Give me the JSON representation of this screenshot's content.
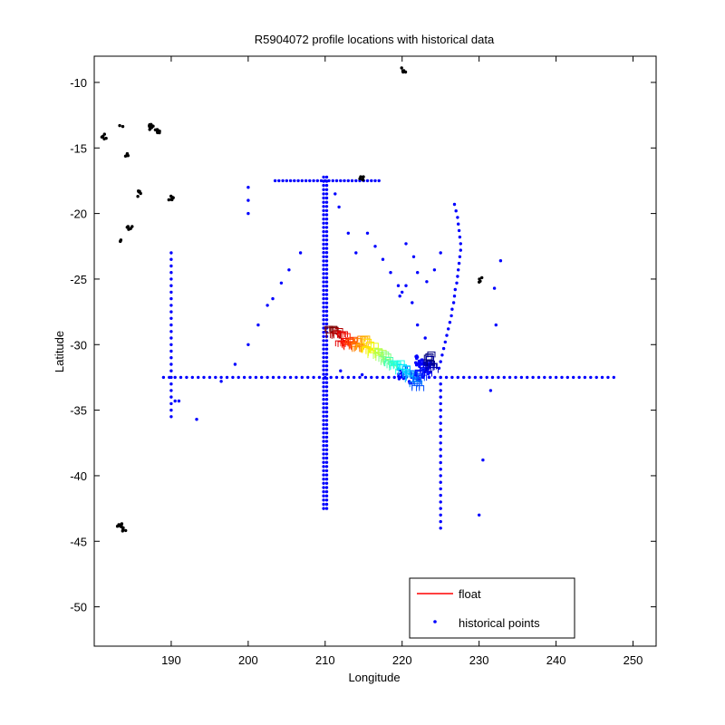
{
  "chart_data": {
    "type": "scatter",
    "title": "R5904072 profile locations with historical data",
    "xlabel": "Longitude",
    "ylabel": "Latitude",
    "xlim": [
      180,
      253
    ],
    "ylim": [
      -53,
      -8
    ],
    "xticks": [
      190,
      200,
      210,
      220,
      230,
      240,
      250
    ],
    "yticks": [
      -10,
      -15,
      -20,
      -25,
      -30,
      -35,
      -40,
      -45,
      -50
    ],
    "xtick_labels": [
      "190",
      "200",
      "210",
      "220",
      "230",
      "240",
      "250"
    ],
    "ytick_labels": [
      "-10",
      "-15",
      "-20",
      "-25",
      "-30",
      "-35",
      "-40",
      "-45",
      "-50"
    ],
    "grid": false,
    "legend_position": "bottom-right",
    "legend": [
      {
        "label": "float",
        "marker": "line",
        "color": "#ff0000"
      },
      {
        "label": "historical points",
        "marker": "dot",
        "color": "#0000ff"
      }
    ],
    "colors": {
      "historical": "#0000ff",
      "other_points": "#000000",
      "float": "#ff0000"
    },
    "historical_lines": [
      {
        "orientation": "horizontal",
        "y": -32.5,
        "x_from": 189,
        "x_to": 247.5,
        "step": 0.75
      },
      {
        "orientation": "vertical",
        "x": 190,
        "y_from": -35.5,
        "y_to": -23,
        "step": 0.5
      },
      {
        "orientation": "vertical",
        "x": 209.8,
        "y_from": -42.5,
        "y_to": -17,
        "step": 0.32
      },
      {
        "orientation": "vertical",
        "x": 210.2,
        "y_from": -42.5,
        "y_to": -17,
        "step": 0.32
      },
      {
        "orientation": "horizontal",
        "y": -17.5,
        "x_from": 203.5,
        "x_to": 217,
        "step": 0.5
      },
      {
        "orientation": "vertical",
        "x": 225,
        "y_from": -44,
        "y_to": -32.5,
        "step": 0.5
      }
    ],
    "historical_scatter": [
      {
        "x": 190.5,
        "y": -34.3
      },
      {
        "x": 191,
        "y": -34.3
      },
      {
        "x": 193.3,
        "y": -35.7
      },
      {
        "x": 196.5,
        "y": -32.8
      },
      {
        "x": 198.3,
        "y": -31.5
      },
      {
        "x": 200,
        "y": -30
      },
      {
        "x": 201.3,
        "y": -28.5
      },
      {
        "x": 202.5,
        "y": -27
      },
      {
        "x": 203.2,
        "y": -26.5
      },
      {
        "x": 204.3,
        "y": -25.3
      },
      {
        "x": 205.3,
        "y": -24.3
      },
      {
        "x": 206.8,
        "y": -23
      },
      {
        "x": 200,
        "y": -18
      },
      {
        "x": 200,
        "y": -19
      },
      {
        "x": 200,
        "y": -20
      },
      {
        "x": 211.3,
        "y": -18.5
      },
      {
        "x": 211.8,
        "y": -19.5
      },
      {
        "x": 213,
        "y": -21.5
      },
      {
        "x": 214,
        "y": -23
      },
      {
        "x": 215.5,
        "y": -21.5
      },
      {
        "x": 216.5,
        "y": -22.5
      },
      {
        "x": 217.5,
        "y": -23.5
      },
      {
        "x": 218.5,
        "y": -24.5
      },
      {
        "x": 219.5,
        "y": -25.5
      },
      {
        "x": 220,
        "y": -26
      },
      {
        "x": 219.7,
        "y": -26.3
      },
      {
        "x": 220.5,
        "y": -22.3
      },
      {
        "x": 221.5,
        "y": -23.3
      },
      {
        "x": 222,
        "y": -24.5
      },
      {
        "x": 223.2,
        "y": -25.2
      },
      {
        "x": 224.2,
        "y": -24.3
      },
      {
        "x": 225,
        "y": -23
      },
      {
        "x": 220.5,
        "y": -25.5
      },
      {
        "x": 221.3,
        "y": -26.8
      },
      {
        "x": 222,
        "y": -28.5
      },
      {
        "x": 226.8,
        "y": -19.3
      },
      {
        "x": 227,
        "y": -19.8
      },
      {
        "x": 227.2,
        "y": -20.3
      },
      {
        "x": 227.3,
        "y": -20.8
      },
      {
        "x": 227.4,
        "y": -21.3
      },
      {
        "x": 227.5,
        "y": -21.8
      },
      {
        "x": 227.6,
        "y": -22.3
      },
      {
        "x": 227.6,
        "y": -22.8
      },
      {
        "x": 227.5,
        "y": -23.3
      },
      {
        "x": 227.4,
        "y": -23.8
      },
      {
        "x": 227.3,
        "y": -24.3
      },
      {
        "x": 227.2,
        "y": -24.8
      },
      {
        "x": 227.1,
        "y": -25.3
      },
      {
        "x": 226.9,
        "y": -25.8
      },
      {
        "x": 226.8,
        "y": -26.3
      },
      {
        "x": 226.7,
        "y": -26.8
      },
      {
        "x": 226.5,
        "y": -27.3
      },
      {
        "x": 226.4,
        "y": -27.8
      },
      {
        "x": 226.2,
        "y": -28.3
      },
      {
        "x": 226,
        "y": -28.8
      },
      {
        "x": 225.8,
        "y": -29.3
      },
      {
        "x": 225.6,
        "y": -29.8
      },
      {
        "x": 225.4,
        "y": -30.3
      },
      {
        "x": 225.2,
        "y": -30.8
      },
      {
        "x": 225,
        "y": -31.3
      },
      {
        "x": 224.8,
        "y": -31.8
      },
      {
        "x": 223,
        "y": -29.5
      },
      {
        "x": 232.2,
        "y": -28.5
      },
      {
        "x": 232,
        "y": -25.7
      },
      {
        "x": 232.8,
        "y": -23.6
      },
      {
        "x": 231.5,
        "y": -33.5
      },
      {
        "x": 230.5,
        "y": -38.8
      },
      {
        "x": 230,
        "y": -43
      },
      {
        "x": 212,
        "y": -32
      },
      {
        "x": 214.8,
        "y": -32.3
      }
    ],
    "historical_clusters": [
      {
        "x": 220,
        "y": -32.2,
        "n": 14
      },
      {
        "x": 222.3,
        "y": -31.3,
        "n": 18
      },
      {
        "x": 223.3,
        "y": -31.8,
        "n": 18
      },
      {
        "x": 221.5,
        "y": -32.5,
        "n": 8
      }
    ],
    "other_clusters": [
      {
        "x": 181.3,
        "y": -14.1,
        "n": 5
      },
      {
        "x": 183.5,
        "y": -13.2,
        "n": 2
      },
      {
        "x": 184.3,
        "y": -15.4,
        "n": 4
      },
      {
        "x": 187.5,
        "y": -13.4,
        "n": 10
      },
      {
        "x": 188.2,
        "y": -13.8,
        "n": 8
      },
      {
        "x": 185.7,
        "y": -18.5,
        "n": 5
      },
      {
        "x": 190,
        "y": -18.9,
        "n": 6
      },
      {
        "x": 184.6,
        "y": -21,
        "n": 6
      },
      {
        "x": 183.6,
        "y": -22.2,
        "n": 3
      },
      {
        "x": 183.3,
        "y": -43.7,
        "n": 6
      },
      {
        "x": 183.8,
        "y": -44,
        "n": 6
      },
      {
        "x": 220.2,
        "y": -9,
        "n": 5
      },
      {
        "x": 214.7,
        "y": -17.4,
        "n": 5
      },
      {
        "x": 230.3,
        "y": -25.1,
        "n": 4
      }
    ],
    "float_track": [
      {
        "x": 210.8,
        "y": -29.0
      },
      {
        "x": 211.5,
        "y": -29.2
      },
      {
        "x": 212.2,
        "y": -29.6
      },
      {
        "x": 212.9,
        "y": -29.8
      },
      {
        "x": 213.6,
        "y": -29.8
      },
      {
        "x": 214.3,
        "y": -29.9
      },
      {
        "x": 215.0,
        "y": -30.0
      },
      {
        "x": 215.7,
        "y": -30.2
      },
      {
        "x": 216.4,
        "y": -30.5
      },
      {
        "x": 217.1,
        "y": -30.8
      },
      {
        "x": 217.8,
        "y": -31.1
      },
      {
        "x": 218.6,
        "y": -31.4
      },
      {
        "x": 219.4,
        "y": -31.7
      },
      {
        "x": 220.2,
        "y": -32.0
      },
      {
        "x": 221.0,
        "y": -32.3
      },
      {
        "x": 221.8,
        "y": -32.6
      },
      {
        "x": 222.2,
        "y": -32.9
      },
      {
        "x": 222.6,
        "y": -32.2
      },
      {
        "x": 223.2,
        "y": -31.8
      },
      {
        "x": 223.8,
        "y": -31.5
      },
      {
        "x": 223.5,
        "y": -31.2
      }
    ]
  }
}
